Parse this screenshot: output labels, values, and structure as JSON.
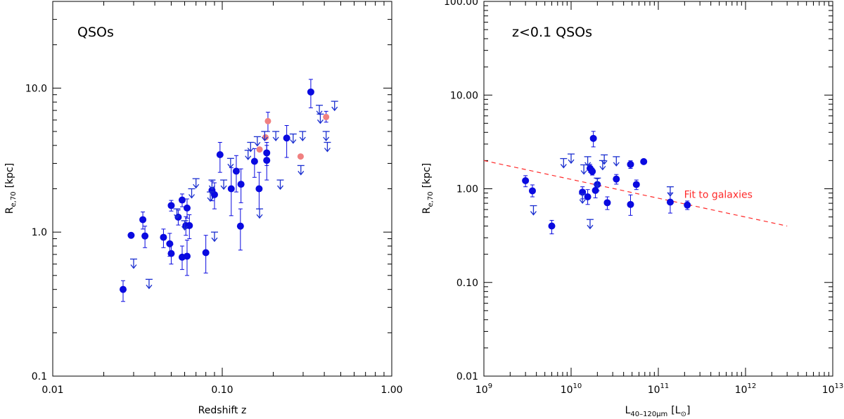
{
  "colors": {
    "detection": "#0a0ae0",
    "upper_limit": "#1b2fd0",
    "highlight": "#f08080",
    "fit": "#ff2a2a",
    "axis": "#000000"
  },
  "chart_data": [
    {
      "type": "scatter",
      "title": "QSOs",
      "xlabel": "Redshift z",
      "ylabel": "R",
      "ylabel_sub": "e,70",
      "ylabel_unit": "[kpc]",
      "xscale": "log",
      "yscale": "log",
      "xlim": [
        0.01,
        1.0
      ],
      "ylim": [
        0.1,
        40
      ],
      "x_ticks": [
        0.01,
        0.1,
        1.0
      ],
      "x_tick_labels": [
        "0.01",
        "0.10",
        "1.00"
      ],
      "y_ticks": [
        0.1,
        1.0,
        10.0
      ],
      "y_tick_labels": [
        "0.1",
        "1.0",
        "10.0"
      ],
      "series": [
        {
          "name": "detections",
          "marker": "filled-circle",
          "points": [
            {
              "x": 0.026,
              "y": 0.4,
              "lo": 0.33,
              "hi": 0.46
            },
            {
              "x": 0.029,
              "y": 0.95
            },
            {
              "x": 0.034,
              "y": 1.22,
              "lo": 1.05,
              "hi": 1.38
            },
            {
              "x": 0.035,
              "y": 0.94,
              "lo": 0.78,
              "hi": 1.1
            },
            {
              "x": 0.045,
              "y": 0.92,
              "lo": 0.78,
              "hi": 1.05
            },
            {
              "x": 0.049,
              "y": 0.83,
              "lo": 0.68,
              "hi": 0.98
            },
            {
              "x": 0.05,
              "y": 0.71,
              "lo": 0.6,
              "hi": 0.82
            },
            {
              "x": 0.05,
              "y": 1.53,
              "lo": 1.4,
              "hi": 1.66
            },
            {
              "x": 0.055,
              "y": 1.27,
              "lo": 1.12,
              "hi": 1.42
            },
            {
              "x": 0.058,
              "y": 1.67,
              "lo": 1.5,
              "hi": 1.84
            },
            {
              "x": 0.058,
              "y": 0.67,
              "lo": 0.55,
              "hi": 0.8
            },
            {
              "x": 0.061,
              "y": 1.11,
              "lo": 0.95,
              "hi": 1.28
            },
            {
              "x": 0.062,
              "y": 1.47,
              "lo": 1.25,
              "hi": 1.7
            },
            {
              "x": 0.062,
              "y": 0.68,
              "lo": 0.5,
              "hi": 0.88
            },
            {
              "x": 0.064,
              "y": 1.11,
              "lo": 0.9,
              "hi": 1.32
            },
            {
              "x": 0.08,
              "y": 0.72,
              "lo": 0.52,
              "hi": 0.95
            },
            {
              "x": 0.087,
              "y": 1.95,
              "lo": 1.65,
              "hi": 2.25
            },
            {
              "x": 0.09,
              "y": 1.82,
              "lo": 1.45,
              "hi": 2.2
            },
            {
              "x": 0.097,
              "y": 3.45,
              "lo": 2.6,
              "hi": 4.2
            },
            {
              "x": 0.113,
              "y": 2.0,
              "lo": 1.3,
              "hi": 2.8
            },
            {
              "x": 0.121,
              "y": 2.65,
              "lo": 1.9,
              "hi": 3.4
            },
            {
              "x": 0.128,
              "y": 1.1,
              "lo": 0.75,
              "hi": 1.45
            },
            {
              "x": 0.129,
              "y": 2.15,
              "lo": 1.6,
              "hi": 2.75
            },
            {
              "x": 0.155,
              "y": 3.1,
              "lo": 2.4,
              "hi": 3.8
            },
            {
              "x": 0.165,
              "y": 2.0,
              "lo": 1.45,
              "hi": 2.6
            },
            {
              "x": 0.183,
              "y": 3.55,
              "lo": 2.9,
              "hi": 4.2
            },
            {
              "x": 0.183,
              "y": 3.15,
              "lo": 2.3,
              "hi": 4.0
            },
            {
              "x": 0.24,
              "y": 4.5,
              "lo": 3.3,
              "hi": 5.5
            },
            {
              "x": 0.333,
              "y": 9.4,
              "lo": 7.3,
              "hi": 11.5
            }
          ]
        },
        {
          "name": "highlighted",
          "marker": "filled-circle",
          "points": [
            {
              "x": 0.166,
              "y": 3.75
            },
            {
              "x": 0.18,
              "y": 4.55
            },
            {
              "x": 0.186,
              "y": 5.9,
              "lo": 5.0,
              "hi": 6.8
            },
            {
              "x": 0.29,
              "y": 3.35
            },
            {
              "x": 0.41,
              "y": 6.3,
              "lo": 5.8,
              "hi": 6.9
            }
          ]
        },
        {
          "name": "upper limits",
          "marker": "down-arrow",
          "points": [
            {
              "x": 0.03,
              "y": 0.65
            },
            {
              "x": 0.037,
              "y": 0.47
            },
            {
              "x": 0.054,
              "y": 1.45
            },
            {
              "x": 0.06,
              "y": 1.2
            },
            {
              "x": 0.066,
              "y": 2.0
            },
            {
              "x": 0.07,
              "y": 2.35
            },
            {
              "x": 0.085,
              "y": 1.9
            },
            {
              "x": 0.087,
              "y": 2.3
            },
            {
              "x": 0.09,
              "y": 1.0
            },
            {
              "x": 0.102,
              "y": 2.3
            },
            {
              "x": 0.112,
              "y": 3.25
            },
            {
              "x": 0.142,
              "y": 3.7
            },
            {
              "x": 0.147,
              "y": 4.2
            },
            {
              "x": 0.161,
              "y": 4.6
            },
            {
              "x": 0.166,
              "y": 1.45
            },
            {
              "x": 0.178,
              "y": 5.0
            },
            {
              "x": 0.207,
              "y": 5.0
            },
            {
              "x": 0.22,
              "y": 2.3
            },
            {
              "x": 0.262,
              "y": 4.8
            },
            {
              "x": 0.291,
              "y": 2.9
            },
            {
              "x": 0.298,
              "y": 5.0
            },
            {
              "x": 0.374,
              "y": 7.6
            },
            {
              "x": 0.379,
              "y": 6.6
            },
            {
              "x": 0.41,
              "y": 5.0
            },
            {
              "x": 0.417,
              "y": 4.2
            },
            {
              "x": 0.46,
              "y": 8.1
            }
          ]
        }
      ]
    },
    {
      "type": "scatter",
      "title": "z<0.1 QSOs",
      "xlabel": "L",
      "xlabel_sub": "40–120μm",
      "xlabel_unit": "[L",
      "xlabel_unit_sub": "⊙",
      "xlabel_unit_end": "]",
      "ylabel": "R",
      "ylabel_sub": "e,70",
      "ylabel_unit": "[kpc]",
      "xscale": "log",
      "yscale": "log",
      "xlim": [
        1000000000.0,
        10000000000000.0
      ],
      "ylim": [
        0.01,
        100
      ],
      "x_ticks": [
        1000000000.0,
        10000000000.0,
        100000000000.0,
        1000000000000.0,
        10000000000000.0
      ],
      "x_tick_base": [
        "10",
        "10",
        "10",
        "10",
        "10"
      ],
      "x_tick_exp": [
        "9",
        "10",
        "11",
        "12",
        "13"
      ],
      "y_ticks": [
        0.01,
        0.1,
        1.0,
        10.0,
        100.0
      ],
      "y_tick_labels": [
        "0.01",
        "0.10",
        "1.00",
        "10.00",
        "100.00"
      ],
      "fit": {
        "label": "Fit to galaxies",
        "x": [
          1000000000.0,
          3000000000000.0
        ],
        "y": [
          2.0,
          0.4
        ]
      },
      "series": [
        {
          "name": "detections",
          "marker": "filled-circle",
          "points": [
            {
              "x": 3000000000.0,
              "y": 1.22,
              "lo": 1.05,
              "hi": 1.38
            },
            {
              "x": 3600000000.0,
              "y": 0.95,
              "lo": 0.82,
              "hi": 1.1
            },
            {
              "x": 6000000000.0,
              "y": 0.4,
              "lo": 0.33,
              "hi": 0.46
            },
            {
              "x": 13500000000.0,
              "y": 0.92,
              "lo": 0.78,
              "hi": 1.05
            },
            {
              "x": 15500000000.0,
              "y": 0.82,
              "lo": 0.68,
              "hi": 0.98
            },
            {
              "x": 16500000000.0,
              "y": 1.65,
              "lo": 1.5,
              "hi": 1.82
            },
            {
              "x": 17500000000.0,
              "y": 1.53,
              "lo": 1.4,
              "hi": 1.66
            },
            {
              "x": 18000000000.0,
              "y": 3.45,
              "lo": 2.8,
              "hi": 4.1
            },
            {
              "x": 19000000000.0,
              "y": 0.96,
              "lo": 0.8,
              "hi": 1.12
            },
            {
              "x": 20000000000.0,
              "y": 1.11,
              "lo": 0.95,
              "hi": 1.28
            },
            {
              "x": 26000000000.0,
              "y": 0.71,
              "lo": 0.6,
              "hi": 0.82
            },
            {
              "x": 33000000000.0,
              "y": 1.27,
              "lo": 1.12,
              "hi": 1.42
            },
            {
              "x": 48000000000.0,
              "y": 1.82,
              "lo": 1.65,
              "hi": 1.99
            },
            {
              "x": 48000000000.0,
              "y": 0.68,
              "lo": 0.52,
              "hi": 0.86
            },
            {
              "x": 56000000000.0,
              "y": 1.11,
              "lo": 0.98,
              "hi": 1.24
            },
            {
              "x": 68000000000.0,
              "y": 1.95,
              "lo": 1.85,
              "hi": 2.05
            },
            {
              "x": 137000000000.0,
              "y": 0.72,
              "lo": 0.55,
              "hi": 0.9
            },
            {
              "x": 215000000000.0,
              "y": 0.67,
              "lo": 0.6,
              "hi": 0.74
            }
          ]
        },
        {
          "name": "upper limits",
          "marker": "down-arrow",
          "points": [
            {
              "x": 3700000000.0,
              "y": 0.66
            },
            {
              "x": 8200000000.0,
              "y": 2.1
            },
            {
              "x": 10000000000.0,
              "y": 2.35
            },
            {
              "x": 13500000000.0,
              "y": 0.88
            },
            {
              "x": 14000000000.0,
              "y": 1.8
            },
            {
              "x": 15500000000.0,
              "y": 2.2
            },
            {
              "x": 16500000000.0,
              "y": 0.47
            },
            {
              "x": 23000000000.0,
              "y": 2.0
            },
            {
              "x": 24000000000.0,
              "y": 2.3
            },
            {
              "x": 33000000000.0,
              "y": 2.2
            },
            {
              "x": 20000000000.0,
              "y": 1.3
            },
            {
              "x": 137000000000.0,
              "y": 1.05
            }
          ]
        }
      ]
    }
  ]
}
